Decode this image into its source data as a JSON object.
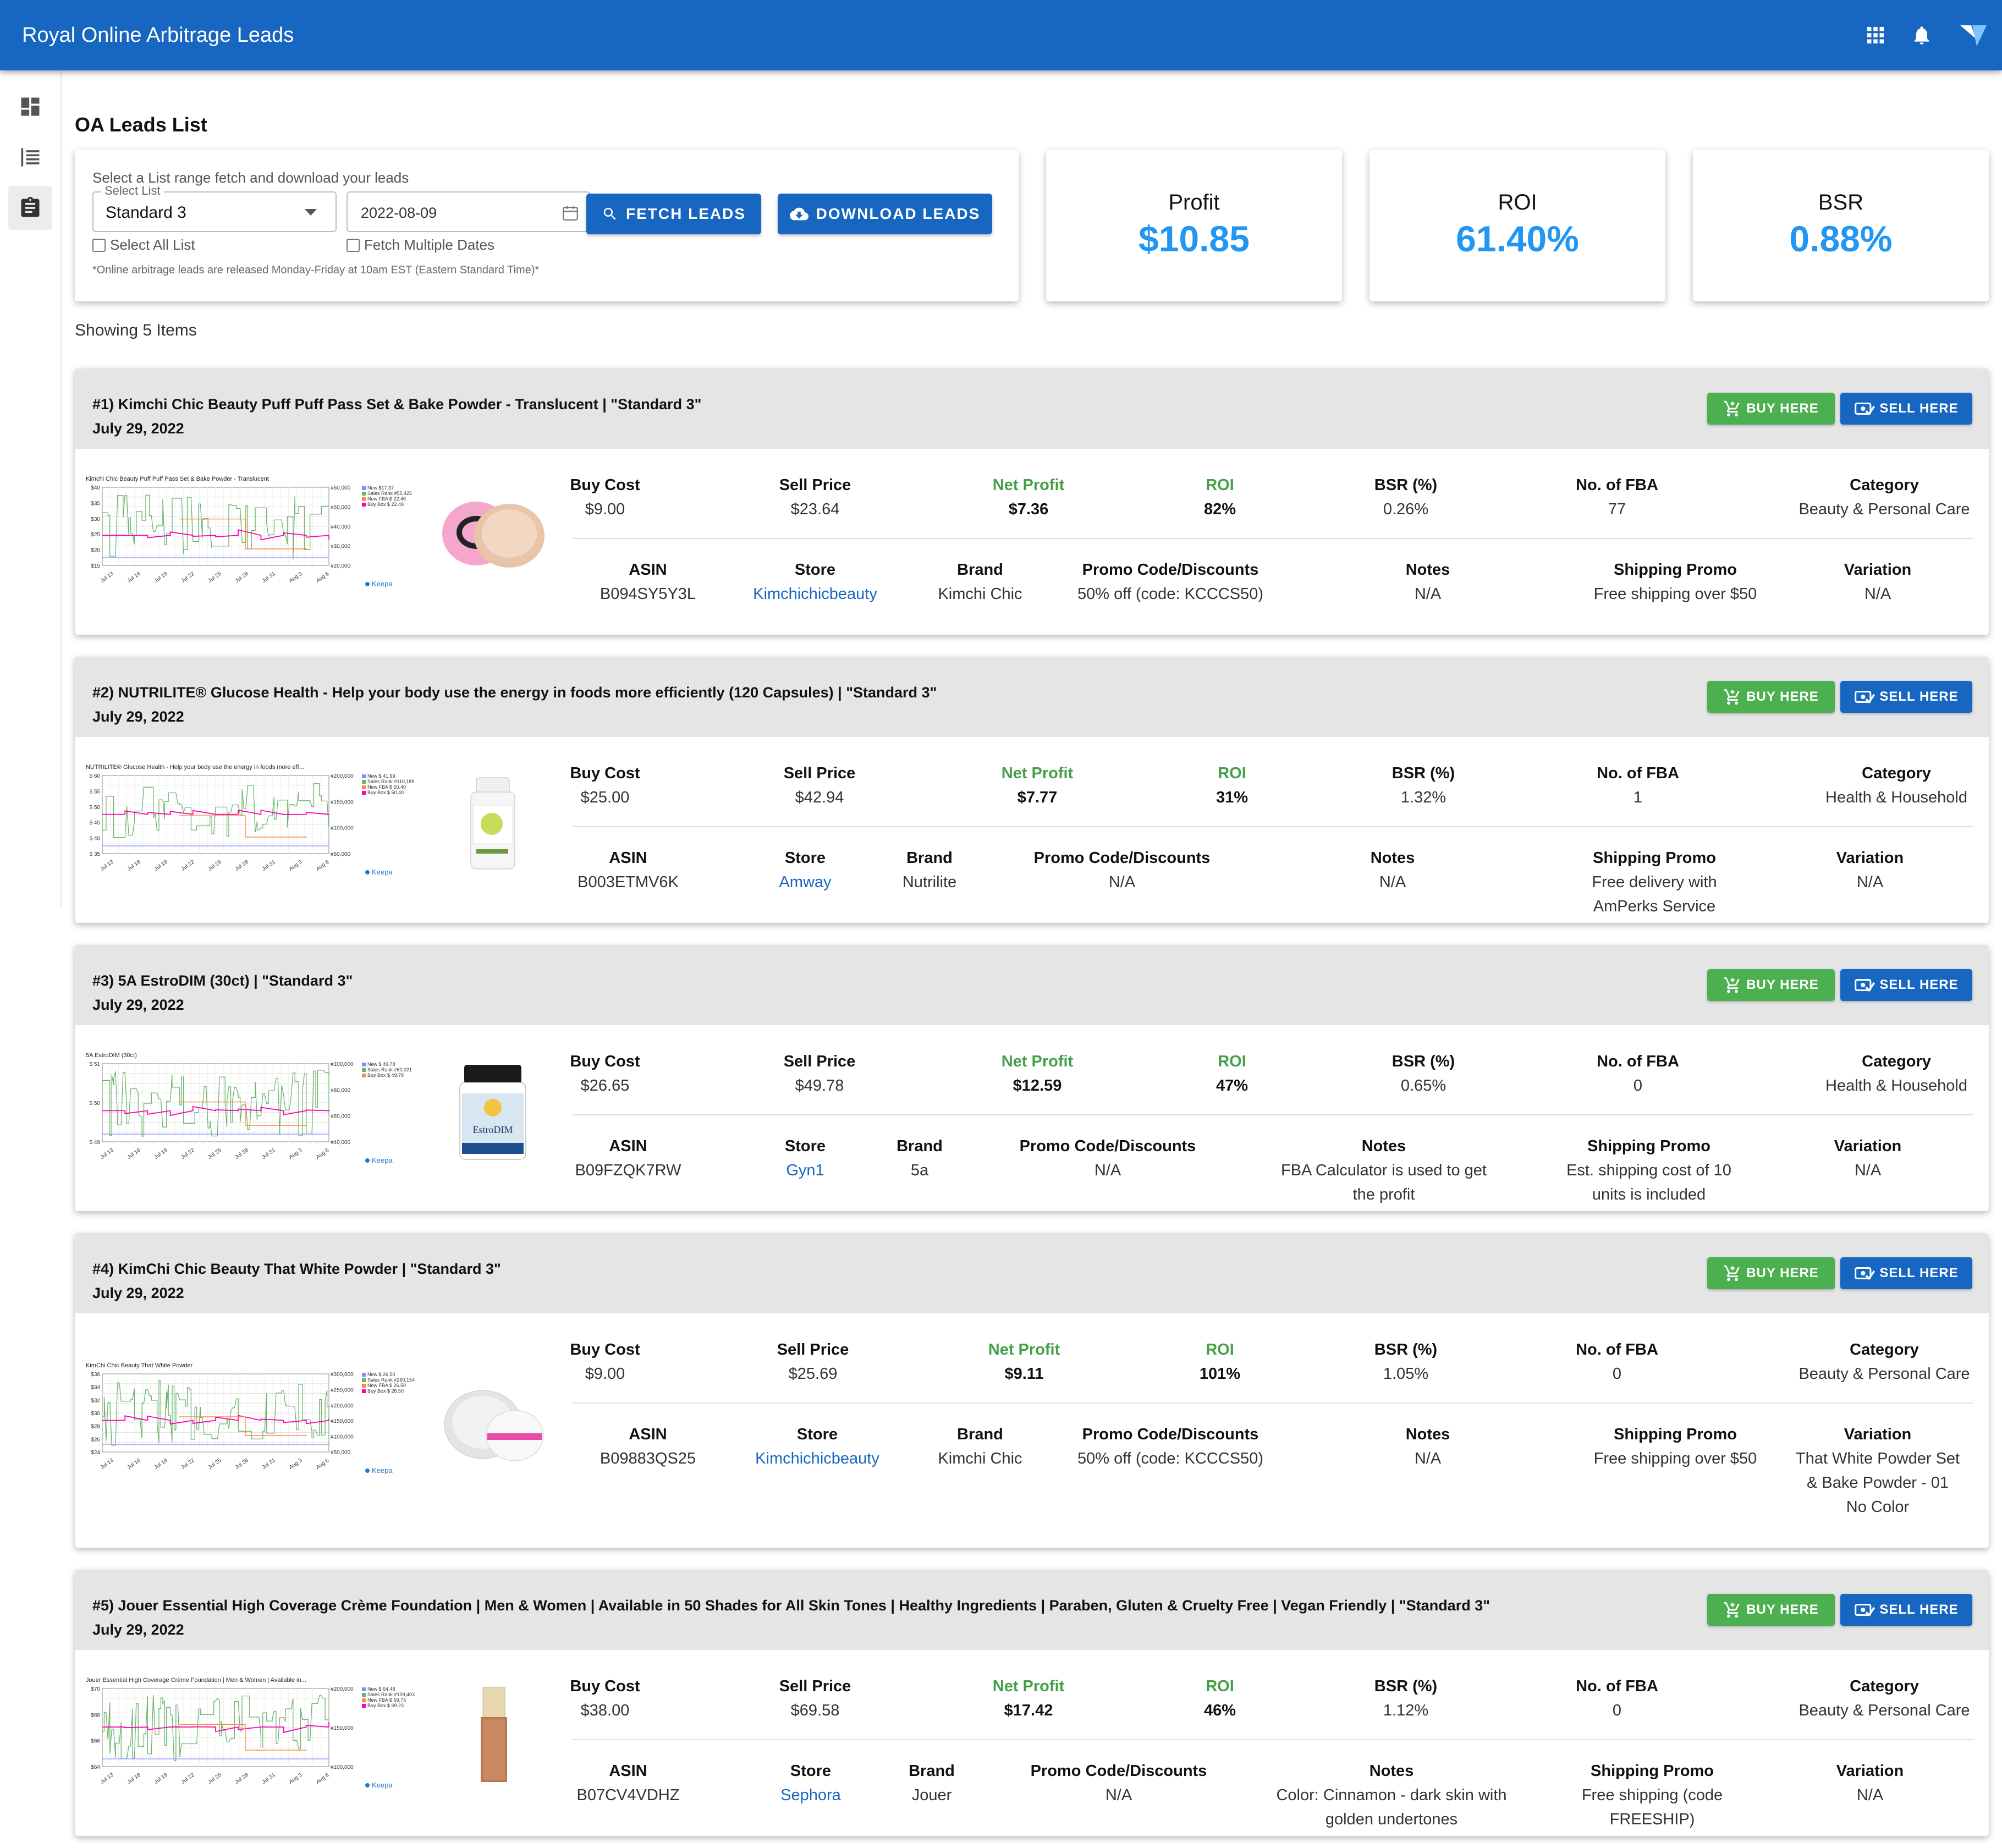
{
  "app": {
    "title": "Royal Online Arbitrage Leads"
  },
  "header_icons": [
    "apps-grid-icon",
    "bell-icon",
    "logo-icon"
  ],
  "sidebar": {
    "items": [
      "dashboard-icon",
      "list-icon",
      "clipboard-icon"
    ],
    "active_index": 2
  },
  "page": {
    "title": "OA Leads List"
  },
  "filters": {
    "hint": "Select a List range fetch and download your leads",
    "select_legend": "Select List",
    "select_value": "Standard 3",
    "date_value": "2022-08-09",
    "select_all_label": "Select All List",
    "multiple_dates_label": "Fetch Multiple Dates",
    "fetch_label": "FETCH LEADS",
    "download_label": "DOWNLOAD LEADS",
    "footnote": "*Online arbitrage leads are released Monday-Friday at 10am EST (Eastern Standard Time)*"
  },
  "stats": [
    {
      "label": "Profit",
      "value": "$10.85"
    },
    {
      "label": "ROI",
      "value": "61.40%"
    },
    {
      "label": "BSR",
      "value": "0.88%"
    }
  ],
  "showing": "Showing 5 Items",
  "buttons": {
    "buy": "BUY HERE",
    "sell": "SELL HERE",
    "keepa": "Keepa"
  },
  "labels": {
    "buy_cost": "Buy Cost",
    "sell_price": "Sell Price",
    "net_profit": "Net Profit",
    "roi": "ROI",
    "bsr": "BSR (%)",
    "fba": "No. of FBA",
    "category": "Category",
    "asin": "ASIN",
    "store": "Store",
    "brand": "Brand",
    "promo": "Promo Code/Discounts",
    "notes": "Notes",
    "shipping": "Shipping Promo",
    "variation": "Variation"
  },
  "colors": {
    "primary": "#1766c2",
    "buy_green": "#4caf50",
    "profit_green": "#43a047",
    "stat_blue": "#2196f3"
  },
  "leads": [
    {
      "title": "#1) Kimchi Chic Beauty Puff Puff Pass Set & Bake Powder - Translucent | \"Standard 3\"",
      "date": "July 29, 2022",
      "buy_cost": "$9.00",
      "sell_price": "$23.64",
      "net_profit": "$7.36",
      "roi": "82%",
      "bsr": "0.26%",
      "fba": "77",
      "category": "Beauty & Personal Care",
      "asin": "B094SY5Y3L",
      "store": "Kimchichicbeauty",
      "brand": "Kimchi Chic",
      "promo": "50% off (code: KCCCS50)",
      "notes": "N/A",
      "shipping": "Free shipping over $50",
      "variation": "N/A",
      "chart_title": "Kimchi Chic Beauty Puff Puff Pass Set & Bake Powder - Translucent",
      "chart_y_left": [
        "$40",
        "$35",
        "$30",
        "$25",
        "$20",
        "$15"
      ],
      "chart_y_right": [
        "#60,000",
        "#50,000",
        "#40,000",
        "#30,000",
        "#20,000"
      ],
      "chart_legend": [
        "New $17.37",
        "Sales Rank #55,425",
        "New FBA $ 22.46",
        "Buy Box $ 22.49"
      ],
      "chart_x": [
        "Jul 13",
        "Jul 16",
        "Jul 19",
        "Jul 22",
        "Jul 25",
        "Jul 28",
        "Jul 31",
        "Aug 3",
        "Aug 6"
      ],
      "product_image": "powder-jar"
    },
    {
      "title": "#2) NUTRILITE® Glucose Health - Help your body use the energy in foods more efficiently (120 Capsules) | \"Standard 3\"",
      "date": "July 29, 2022",
      "buy_cost": "$25.00",
      "sell_price": "$42.94",
      "net_profit": "$7.77",
      "roi": "31%",
      "bsr": "1.32%",
      "fba": "1",
      "category": "Health & Household",
      "asin": "B003ETMV6K",
      "store": "Amway",
      "brand": "Nutrilite",
      "promo": "N/A",
      "notes": "N/A",
      "shipping": "Free delivery with AmPerks Service",
      "variation": "N/A",
      "chart_title": "NUTRILITE® Glucose Health - Help your body use the energy in foods more eff...",
      "chart_y_left": [
        "$ 60",
        "$ 55",
        "$ 50",
        "$ 45",
        "$ 40",
        "$ 35"
      ],
      "chart_y_right": [
        "#200,000",
        "#150,000",
        "#100,000",
        "#50,000"
      ],
      "chart_legend": [
        "New $ 41.99",
        "Sales Rank #110,189",
        "New FBA $ 50.40",
        "Buy Box $ 50.40"
      ],
      "chart_x": [
        "Jul 13",
        "Jul 16",
        "Jul 19",
        "Jul 22",
        "Jul 25",
        "Jul 28",
        "Jul 31",
        "Aug 3",
        "Aug 6"
      ],
      "product_image": "supplement-bottle"
    },
    {
      "title": "#3) 5A EstroDIM (30ct) | \"Standard 3\"",
      "date": "July 29, 2022",
      "buy_cost": "$26.65",
      "sell_price": "$49.78",
      "net_profit": "$12.59",
      "roi": "47%",
      "bsr": "0.65%",
      "fba": "0",
      "category": "Health & Household",
      "asin": "B09FZQK7RW",
      "store": "Gyn1",
      "brand": "5a",
      "promo": "N/A",
      "notes": "FBA Calculator is used to get the profit",
      "shipping": "Est. shipping cost of 10 units is included",
      "variation": "N/A",
      "chart_title": "5A EstroDIM (30ct)",
      "chart_y_left": [
        "$ 51",
        "$ 50",
        "$ 49"
      ],
      "chart_y_right": [
        "#100,000",
        "#80,000",
        "#60,000",
        "#40,000"
      ],
      "chart_legend": [
        "New $ 49.78",
        "Sales Rank #60,021",
        "Buy Box $ 49.78"
      ],
      "chart_x": [
        "Jul 13",
        "Jul 16",
        "Jul 19",
        "Jul 22",
        "Jul 25",
        "Jul 28",
        "Jul 31",
        "Aug 3",
        "Aug 6"
      ],
      "product_image": "estrodim-bottle"
    },
    {
      "title": "#4) KimChi Chic Beauty That White Powder | \"Standard 3\"",
      "date": "July 29, 2022",
      "buy_cost": "$9.00",
      "sell_price": "$25.69",
      "net_profit": "$9.11",
      "roi": "101%",
      "bsr": "1.05%",
      "fba": "0",
      "category": "Beauty & Personal Care",
      "asin": "B09883QS25",
      "store": "Kimchichicbeauty",
      "brand": "Kimchi Chic",
      "promo": "50% off (code: KCCCS50)",
      "notes": "N/A",
      "shipping": "Free shipping over $50",
      "variation": "That White Powder Set & Bake Powder - 01 No Color",
      "chart_title": "KimChi Chic Beauty That White Powder",
      "chart_y_left": [
        "$36",
        "$34",
        "$32",
        "$30",
        "$28",
        "$26",
        "$24"
      ],
      "chart_y_right": [
        "#300,000",
        "#250,000",
        "#200,000",
        "#150,000",
        "#100,000",
        "#50,000"
      ],
      "chart_legend": [
        "New $ 26.50",
        "Sales Rank #260,154",
        "New FBA $ 26.50",
        "Buy Box $ 26.50"
      ],
      "chart_x": [
        "Jul 13",
        "Jul 16",
        "Jul 19",
        "Jul 22",
        "Jul 25",
        "Jul 28",
        "Jul 31",
        "Aug 3",
        "Aug 6"
      ],
      "product_image": "white-powder"
    },
    {
      "title": "#5) Jouer Essential High Coverage Crème Foundation | Men & Women | Available in 50 Shades for All Skin Tones | Healthy Ingredients | Paraben, Gluten & Cruelty Free | Vegan Friendly | \"Standard 3\"",
      "date": "July 29, 2022",
      "buy_cost": "$38.00",
      "sell_price": "$69.58",
      "net_profit": "$17.42",
      "roi": "46%",
      "bsr": "1.12%",
      "fba": "0",
      "category": "Beauty & Personal Care",
      "asin": "B07CV4VDHZ",
      "store": "Sephora",
      "brand": "Jouer",
      "promo": "N/A",
      "notes": "Color: Cinnamon - dark skin with golden undertones",
      "shipping": "Free shipping (code FREESHIP)",
      "variation": "N/A",
      "chart_title": "Jouer Essential High Coverage Crème Foundation | Men & Women | Available in...",
      "chart_y_left": [
        "$70",
        "$68",
        "$66",
        "$64"
      ],
      "chart_y_right": [
        "#200,000",
        "#150,000",
        "#100,000"
      ],
      "chart_legend": [
        "New $ 64.48",
        "Sales Rank #109,403",
        "New FBA $ 69.73",
        "Buy Box $ 69.23"
      ],
      "chart_x": [
        "Jul 13",
        "Jul 16",
        "Jul 19",
        "Jul 22",
        "Jul 25",
        "Jul 28",
        "Jul 31",
        "Aug 3",
        "Aug 6"
      ],
      "product_image": "foundation-bottle"
    }
  ]
}
